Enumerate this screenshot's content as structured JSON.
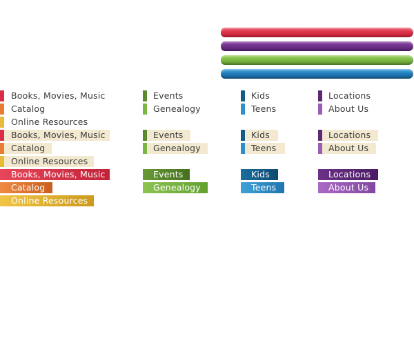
{
  "colors": {
    "red": "#d92e45",
    "orange": "#e97b32",
    "yellow": "#e9b938",
    "green_dark": "#5b8a2e",
    "green_light": "#7ab641",
    "blue_dark": "#135b86",
    "blue_light": "#2f8fc9",
    "purple_dark": "#5e2878",
    "purple_light": "#9b5cb6",
    "hover_bg": "#f2e9d0",
    "text": "#3b3b3b"
  },
  "nav": {
    "books": "Books, Movies, Music",
    "catalog": "Catalog",
    "online": "Online Resources",
    "events": "Events",
    "genealogy": "Genealogy",
    "kids": "Kids",
    "teens": "Teens",
    "locations": "Locations",
    "about": "About Us"
  }
}
